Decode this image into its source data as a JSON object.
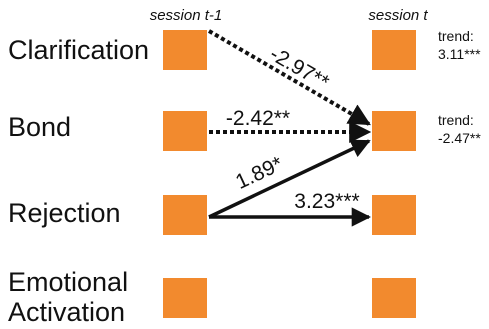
{
  "columns": {
    "left": {
      "prefix": "session ",
      "variable": "t",
      "suffix": "-1"
    },
    "right": {
      "prefix": "session ",
      "variable": "t",
      "suffix": ""
    }
  },
  "rows": [
    {
      "id": "clarification",
      "label_lines": [
        "Clarification"
      ]
    },
    {
      "id": "bond",
      "label_lines": [
        "Bond"
      ]
    },
    {
      "id": "rejection",
      "label_lines": [
        "Rejection"
      ]
    },
    {
      "id": "emotional-activation",
      "label_lines": [
        "Emotional",
        "Activation"
      ]
    }
  ],
  "edges": [
    {
      "id": "clarification-to-bond",
      "from": "clarification",
      "to": "bond",
      "label": "-2.97**",
      "style": "dotted"
    },
    {
      "id": "bond-to-bond",
      "from": "bond",
      "to": "bond",
      "label": "-2.42**",
      "style": "dotted"
    },
    {
      "id": "rejection-to-bond",
      "from": "rejection",
      "to": "bond",
      "label": "1.89*",
      "style": "solid"
    },
    {
      "id": "rejection-to-rejection",
      "from": "rejection",
      "to": "rejection",
      "label": "3.23***",
      "style": "solid"
    }
  ],
  "trends": [
    {
      "row": "clarification",
      "lines": [
        "trend:",
        "3.11***"
      ]
    },
    {
      "row": "bond",
      "lines": [
        "trend:",
        "-2.47**"
      ]
    }
  ],
  "colors": {
    "box": "#f28a2e",
    "arrow": "#111111",
    "text": "#111111"
  }
}
